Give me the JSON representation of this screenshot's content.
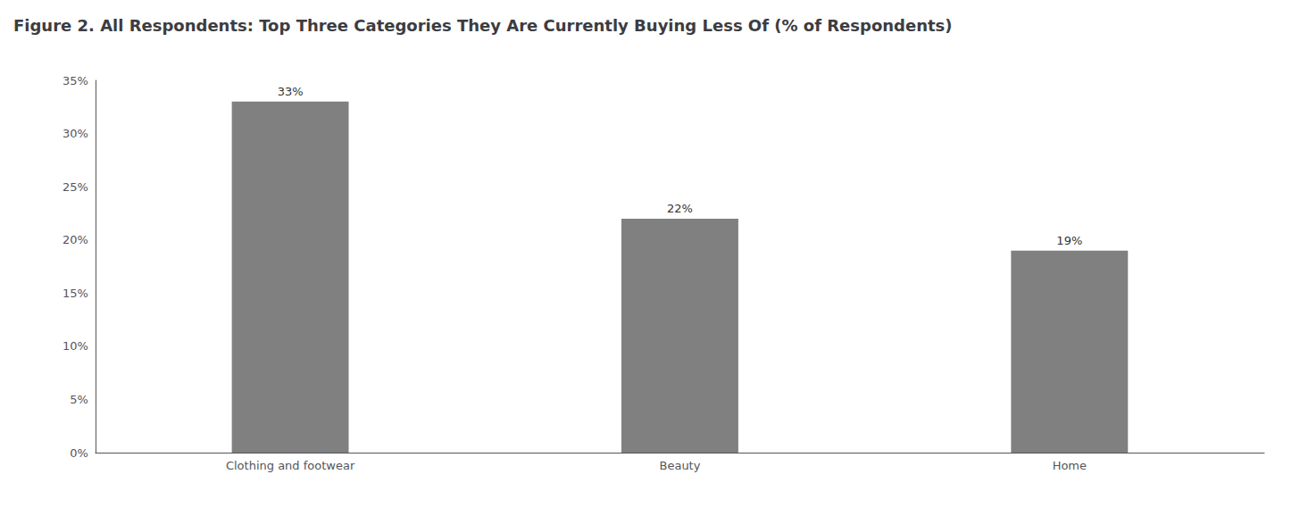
{
  "chart_data": {
    "type": "bar",
    "title": "Figure 2. All Respondents: Top Three Categories They Are Currently Buying Less Of (% of Respondents)",
    "categories": [
      "Clothing and footwear",
      "Beauty",
      "Home"
    ],
    "values": [
      33,
      22,
      19
    ],
    "value_labels": [
      "33%",
      "22%",
      "19%"
    ],
    "color": "#808080",
    "ylim": [
      0,
      35
    ],
    "yticks": [
      {
        "value": 0,
        "label": "0%"
      },
      {
        "value": 5,
        "label": "5%"
      },
      {
        "value": 10,
        "label": "10%"
      },
      {
        "value": 15,
        "label": "15%"
      },
      {
        "value": 20,
        "label": "20%"
      },
      {
        "value": 25,
        "label": "25%"
      },
      {
        "value": 30,
        "label": "30%"
      },
      {
        "value": 35,
        "label": "35%"
      }
    ],
    "grid": false,
    "data_labels": true
  }
}
